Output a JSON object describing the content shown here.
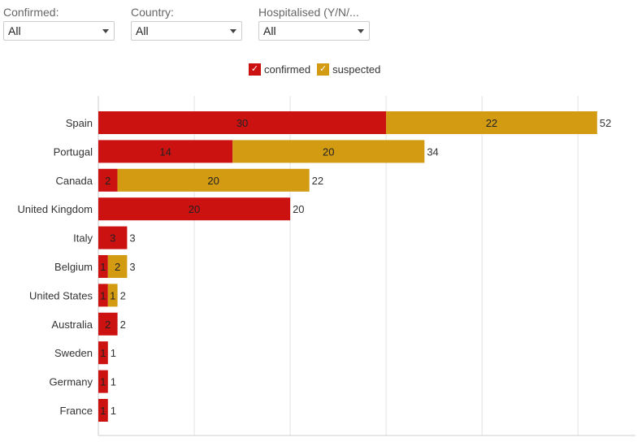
{
  "filters": [
    {
      "label": "Confirmed:",
      "value": "All"
    },
    {
      "label": "Country:",
      "value": "All"
    },
    {
      "label": "Hospitalised (Y/N/...",
      "value": "All"
    }
  ],
  "legend": {
    "confirmed": {
      "label": "confirmed",
      "check": "✓"
    },
    "suspected": {
      "label": "suspected",
      "check": "✓"
    }
  },
  "colors": {
    "confirmed": "#cc1111",
    "suspected": "#d29b12",
    "grid": "#e2e2e2",
    "axis": "#cccccc"
  },
  "chart_data": {
    "type": "bar",
    "orientation": "horizontal",
    "stacked": true,
    "categories": [
      "Spain",
      "Portugal",
      "Canada",
      "United Kingdom",
      "Italy",
      "Belgium",
      "United States",
      "Australia",
      "Sweden",
      "Germany",
      "France"
    ],
    "series": [
      {
        "name": "confirmed",
        "values": [
          30,
          14,
          2,
          20,
          3,
          1,
          1,
          2,
          1,
          1,
          1
        ]
      },
      {
        "name": "suspected",
        "values": [
          22,
          20,
          20,
          0,
          0,
          2,
          1,
          0,
          0,
          0,
          0
        ]
      }
    ],
    "totals": [
      52,
      34,
      22,
      20,
      3,
      3,
      2,
      2,
      1,
      1,
      1
    ],
    "xlim": [
      0,
      56
    ],
    "grid": true,
    "legend_position": "top-center"
  }
}
